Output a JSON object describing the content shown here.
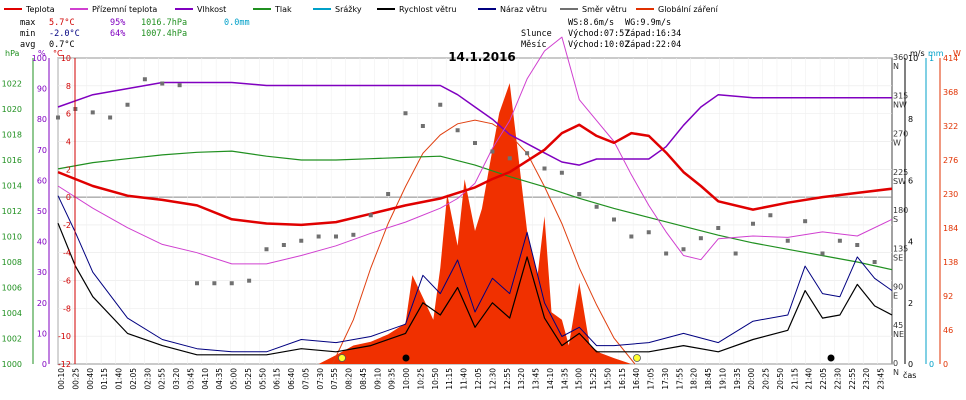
{
  "chart_data": {
    "type": "line",
    "title": "14.1.2016",
    "legend": [
      {
        "name": "Teplota",
        "color": "#e00000"
      },
      {
        "name": "Přízemní teplota",
        "color": "#d040d0"
      },
      {
        "name": "Vlhkost",
        "color": "#8000c0"
      },
      {
        "name": "Tlak",
        "color": "#209020"
      },
      {
        "name": "Srážky",
        "color": "#00a0c8"
      },
      {
        "name": "Rychlost větru",
        "color": "#000000"
      },
      {
        "name": "Náraz větru",
        "color": "#000080"
      },
      {
        "name": "Směr větru",
        "color": "#707070"
      },
      {
        "name": "Globální záření",
        "color": "#e03000"
      }
    ],
    "stats": {
      "max_label": "max",
      "min_label": "min",
      "avg_label": "avg",
      "max_temp": "5.7°C",
      "max_hum": "95%",
      "max_press": "1016.7hPa",
      "max_rain": "0.0mm",
      "min_temp": "-2.0°C",
      "min_hum": "64%",
      "min_press": "1007.4hPa",
      "avg_temp": "0.7°C",
      "ws": "WS:8.6m/s",
      "wg": "WG:9.9m/s",
      "sun_label": "Slunce",
      "sun_rise": "Východ:07:57",
      "sun_set": "Západ:16:34",
      "moon_label": "Měsíc",
      "moon_rise": "Východ:10:02",
      "moon_set": "Západ:22:04"
    },
    "axes": {
      "pressure": {
        "unit": "hPa",
        "min": 1000,
        "max": 1024,
        "ticks": [
          1000,
          1002,
          1004,
          1006,
          1008,
          1010,
          1012,
          1014,
          1016,
          1018,
          1020,
          1022
        ]
      },
      "humidity": {
        "unit": "%",
        "min": 0,
        "max": 100,
        "ticks": [
          0,
          10,
          20,
          30,
          40,
          50,
          60,
          70,
          80,
          90,
          100
        ]
      },
      "temperature": {
        "unit": "°C",
        "min": -12,
        "max": 10,
        "ticks": [
          -12,
          -10,
          -8,
          -6,
          -4,
          -2,
          0,
          2,
          4,
          6,
          8,
          10
        ]
      },
      "wind_speed": {
        "unit": "m/s",
        "min": 0,
        "max": 10,
        "ticks": [
          0,
          2,
          4,
          6,
          8,
          10
        ]
      },
      "rain": {
        "unit": "mm",
        "min": 0,
        "max": 1,
        "ticks": [
          0,
          1
        ]
      },
      "radiation": {
        "unit": "W",
        "min": 0,
        "max": 414,
        "ticks": [
          0,
          46,
          92,
          138,
          184,
          230,
          276,
          322,
          368,
          414
        ]
      },
      "direction": {
        "ticks": [
          {
            "deg": 0,
            "val": "0",
            "dir": "N"
          },
          {
            "deg": 45,
            "val": "45",
            "dir": "NE"
          },
          {
            "deg": 90,
            "val": "90",
            "dir": "E"
          },
          {
            "deg": 135,
            "val": "135",
            "dir": "SE"
          },
          {
            "deg": 180,
            "val": "180",
            "dir": "S"
          },
          {
            "deg": 225,
            "val": "225",
            "dir": "SW"
          },
          {
            "deg": 270,
            "val": "270",
            "dir": "W"
          },
          {
            "deg": 315,
            "val": "315",
            "dir": "NW"
          },
          {
            "deg": 360,
            "val": "360",
            "dir": "N"
          }
        ]
      },
      "x_label": "čas",
      "x_ticks": [
        "00:10",
        "00:25",
        "00:40",
        "01:15",
        "01:40",
        "02:05",
        "02:30",
        "02:55",
        "03:20",
        "03:45",
        "04:10",
        "04:35",
        "05:00",
        "05:25",
        "05:50",
        "06:15",
        "06:40",
        "07:05",
        "07:30",
        "07:55",
        "08:20",
        "08:45",
        "09:10",
        "09:35",
        "10:00",
        "10:25",
        "10:50",
        "11:15",
        "11:40",
        "12:05",
        "12:30",
        "12:55",
        "13:20",
        "13:45",
        "14:10",
        "14:35",
        "15:00",
        "15:25",
        "15:50",
        "16:15",
        "16:40",
        "17:05",
        "17:30",
        "17:55",
        "18:20",
        "18:45",
        "19:10",
        "19:35",
        "20:00",
        "20:25",
        "20:50",
        "21:15",
        "21:40",
        "22:05",
        "22:30",
        "22:55",
        "23:20",
        "23:45"
      ]
    },
    "series": {
      "temperature": {
        "x": [
          0,
          1,
          2,
          3,
          4,
          5,
          6,
          7,
          8,
          9,
          10,
          11,
          11.5,
          12,
          12.5,
          13,
          13.5,
          14,
          14.5,
          15,
          15.5,
          16,
          16.5,
          17,
          17.5,
          18,
          18.5,
          19,
          20,
          21,
          22,
          23,
          24
        ],
        "y": [
          1.8,
          0.8,
          0.1,
          -0.2,
          -0.6,
          -1.6,
          -1.9,
          -2.0,
          -1.8,
          -1.2,
          -0.6,
          -0.1,
          0.3,
          0.7,
          1.3,
          1.8,
          2.6,
          3.4,
          4.6,
          5.2,
          4.4,
          3.9,
          4.6,
          4.4,
          3.2,
          1.8,
          0.8,
          -0.3,
          -0.9,
          -0.4,
          0.0,
          0.3,
          0.6
        ]
      },
      "ground_temperature": {
        "x": [
          0,
          1,
          2,
          3,
          4,
          5,
          6,
          7,
          8,
          9,
          10,
          11,
          11.5,
          12,
          12.5,
          13,
          13.5,
          14,
          14.5,
          15,
          15.5,
          16,
          16.5,
          17,
          17.5,
          18,
          18.5,
          19,
          20,
          21,
          22,
          23,
          24
        ],
        "y": [
          0.8,
          -0.8,
          -2.2,
          -3.4,
          -4.0,
          -4.8,
          -4.8,
          -4.2,
          -3.5,
          -2.6,
          -1.8,
          -0.8,
          -0.1,
          1.0,
          3.5,
          5.5,
          8.5,
          10.5,
          11.5,
          7.0,
          5.5,
          4.0,
          1.6,
          -0.6,
          -2.5,
          -4.2,
          -4.5,
          -3.0,
          -2.8,
          -2.9,
          -2.5,
          -2.8,
          -1.6
        ]
      },
      "humidity": {
        "x": [
          0,
          1,
          2,
          3,
          4,
          5,
          6,
          7,
          8,
          9,
          10,
          11,
          11.5,
          12,
          12.5,
          13,
          13.5,
          14,
          14.5,
          15,
          15.5,
          16,
          16.5,
          17,
          17.5,
          18,
          18.5,
          19,
          20,
          21,
          22,
          23,
          24
        ],
        "y": [
          84,
          88,
          90,
          92,
          92,
          92,
          91,
          91,
          91,
          91,
          91,
          91,
          88,
          84,
          80,
          75,
          72,
          69,
          66,
          65,
          67,
          67,
          67,
          67,
          71,
          78,
          84,
          88,
          87,
          87,
          87,
          87,
          87
        ]
      },
      "pressure": {
        "x": [
          0,
          1,
          2,
          3,
          4,
          5,
          6,
          7,
          8,
          9,
          10,
          11,
          12,
          13,
          14,
          15,
          16,
          17,
          18,
          19,
          20,
          21,
          22,
          23,
          24
        ],
        "y": [
          1015.3,
          1015.8,
          1016.1,
          1016.4,
          1016.6,
          1016.7,
          1016.3,
          1016.0,
          1016.0,
          1016.1,
          1016.2,
          1016.3,
          1015.6,
          1014.7,
          1013.9,
          1013.0,
          1012.2,
          1011.5,
          1010.8,
          1010.1,
          1009.5,
          1009.0,
          1008.5,
          1008.0,
          1007.4
        ]
      },
      "wind_speed": {
        "x": [
          0,
          0.5,
          1,
          2,
          3,
          4,
          5,
          6,
          7,
          8,
          9,
          10,
          10.5,
          11,
          11.5,
          12,
          12.5,
          13,
          13.5,
          14,
          14.5,
          15,
          15.5,
          16,
          17,
          18,
          19,
          20,
          21,
          21.5,
          22,
          22.5,
          23,
          23.5,
          24
        ],
        "y": [
          4.6,
          3.2,
          2.2,
          1.0,
          0.6,
          0.3,
          0.3,
          0.3,
          0.5,
          0.4,
          0.6,
          1.0,
          2.0,
          1.6,
          2.5,
          1.2,
          2.0,
          1.5,
          3.5,
          1.5,
          0.6,
          1.0,
          0.4,
          0.4,
          0.4,
          0.6,
          0.4,
          0.8,
          1.1,
          2.4,
          1.5,
          1.6,
          2.6,
          1.9,
          1.6
        ]
      },
      "wind_gust": {
        "x": [
          0,
          0.5,
          1,
          2,
          3,
          4,
          5,
          6,
          7,
          8,
          9,
          10,
          10.5,
          11,
          11.5,
          12,
          12.5,
          13,
          13.5,
          14,
          14.5,
          15,
          15.5,
          16,
          17,
          18,
          19,
          20,
          21,
          21.5,
          22,
          22.5,
          23,
          23.5,
          24
        ],
        "y": [
          5.5,
          4.3,
          3.0,
          1.5,
          0.8,
          0.5,
          0.4,
          0.4,
          0.8,
          0.7,
          0.9,
          1.3,
          2.9,
          2.3,
          3.4,
          1.7,
          2.8,
          2.3,
          4.3,
          2.0,
          0.9,
          1.2,
          0.6,
          0.6,
          0.7,
          1.0,
          0.7,
          1.4,
          1.6,
          3.2,
          2.3,
          2.2,
          3.5,
          2.8,
          2.4
        ]
      },
      "wind_direction": {
        "x": [
          0,
          0.5,
          1,
          1.5,
          2,
          2.5,
          3,
          3.5,
          4,
          4.5,
          5,
          5.5,
          6,
          6.5,
          7,
          7.5,
          8,
          8.5,
          9,
          9.5,
          10,
          10.5,
          11,
          11.5,
          12,
          12.5,
          13,
          13.5,
          14,
          14.5,
          15,
          15.5,
          16,
          16.5,
          17,
          17.5,
          18,
          18.5,
          19,
          19.5,
          20,
          20.5,
          21,
          21.5,
          22,
          22.5,
          23,
          23.5
        ],
        "y": [
          290,
          300,
          296,
          290,
          305,
          335,
          330,
          328,
          95,
          95,
          95,
          98,
          135,
          140,
          145,
          150,
          150,
          152,
          175,
          200,
          295,
          280,
          305,
          275,
          260,
          250,
          242,
          248,
          230,
          225,
          200,
          185,
          170,
          150,
          155,
          130,
          135,
          148,
          160,
          130,
          165,
          175,
          145,
          168,
          130,
          145,
          140,
          120
        ]
      },
      "radiation": {
        "x": [
          7.5,
          8,
          8.5,
          9,
          9.5,
          10,
          10.2,
          10.5,
          10.8,
          11,
          11.2,
          11.5,
          11.7,
          12,
          12.2,
          12.5,
          12.7,
          13,
          13.2,
          13.5,
          13.8,
          14,
          14.2,
          14.5,
          14.7,
          15,
          15.3,
          15.6,
          16,
          16.5
        ],
        "y": [
          0,
          12,
          25,
          30,
          40,
          55,
          120,
          90,
          60,
          130,
          230,
          160,
          250,
          180,
          210,
          290,
          340,
          380,
          300,
          180,
          120,
          200,
          70,
          60,
          25,
          110,
          25,
          15,
          8,
          0
        ]
      },
      "radiation_clear_sky": {
        "x": [
          7.9,
          8.5,
          9,
          9.5,
          10,
          10.5,
          11,
          11.5,
          12,
          12.5,
          13,
          13.5,
          14,
          14.5,
          15,
          15.5,
          16,
          16.6
        ],
        "y": [
          0,
          60,
          130,
          190,
          240,
          285,
          310,
          325,
          330,
          325,
          310,
          285,
          240,
          190,
          130,
          80,
          35,
          0
        ]
      }
    }
  }
}
